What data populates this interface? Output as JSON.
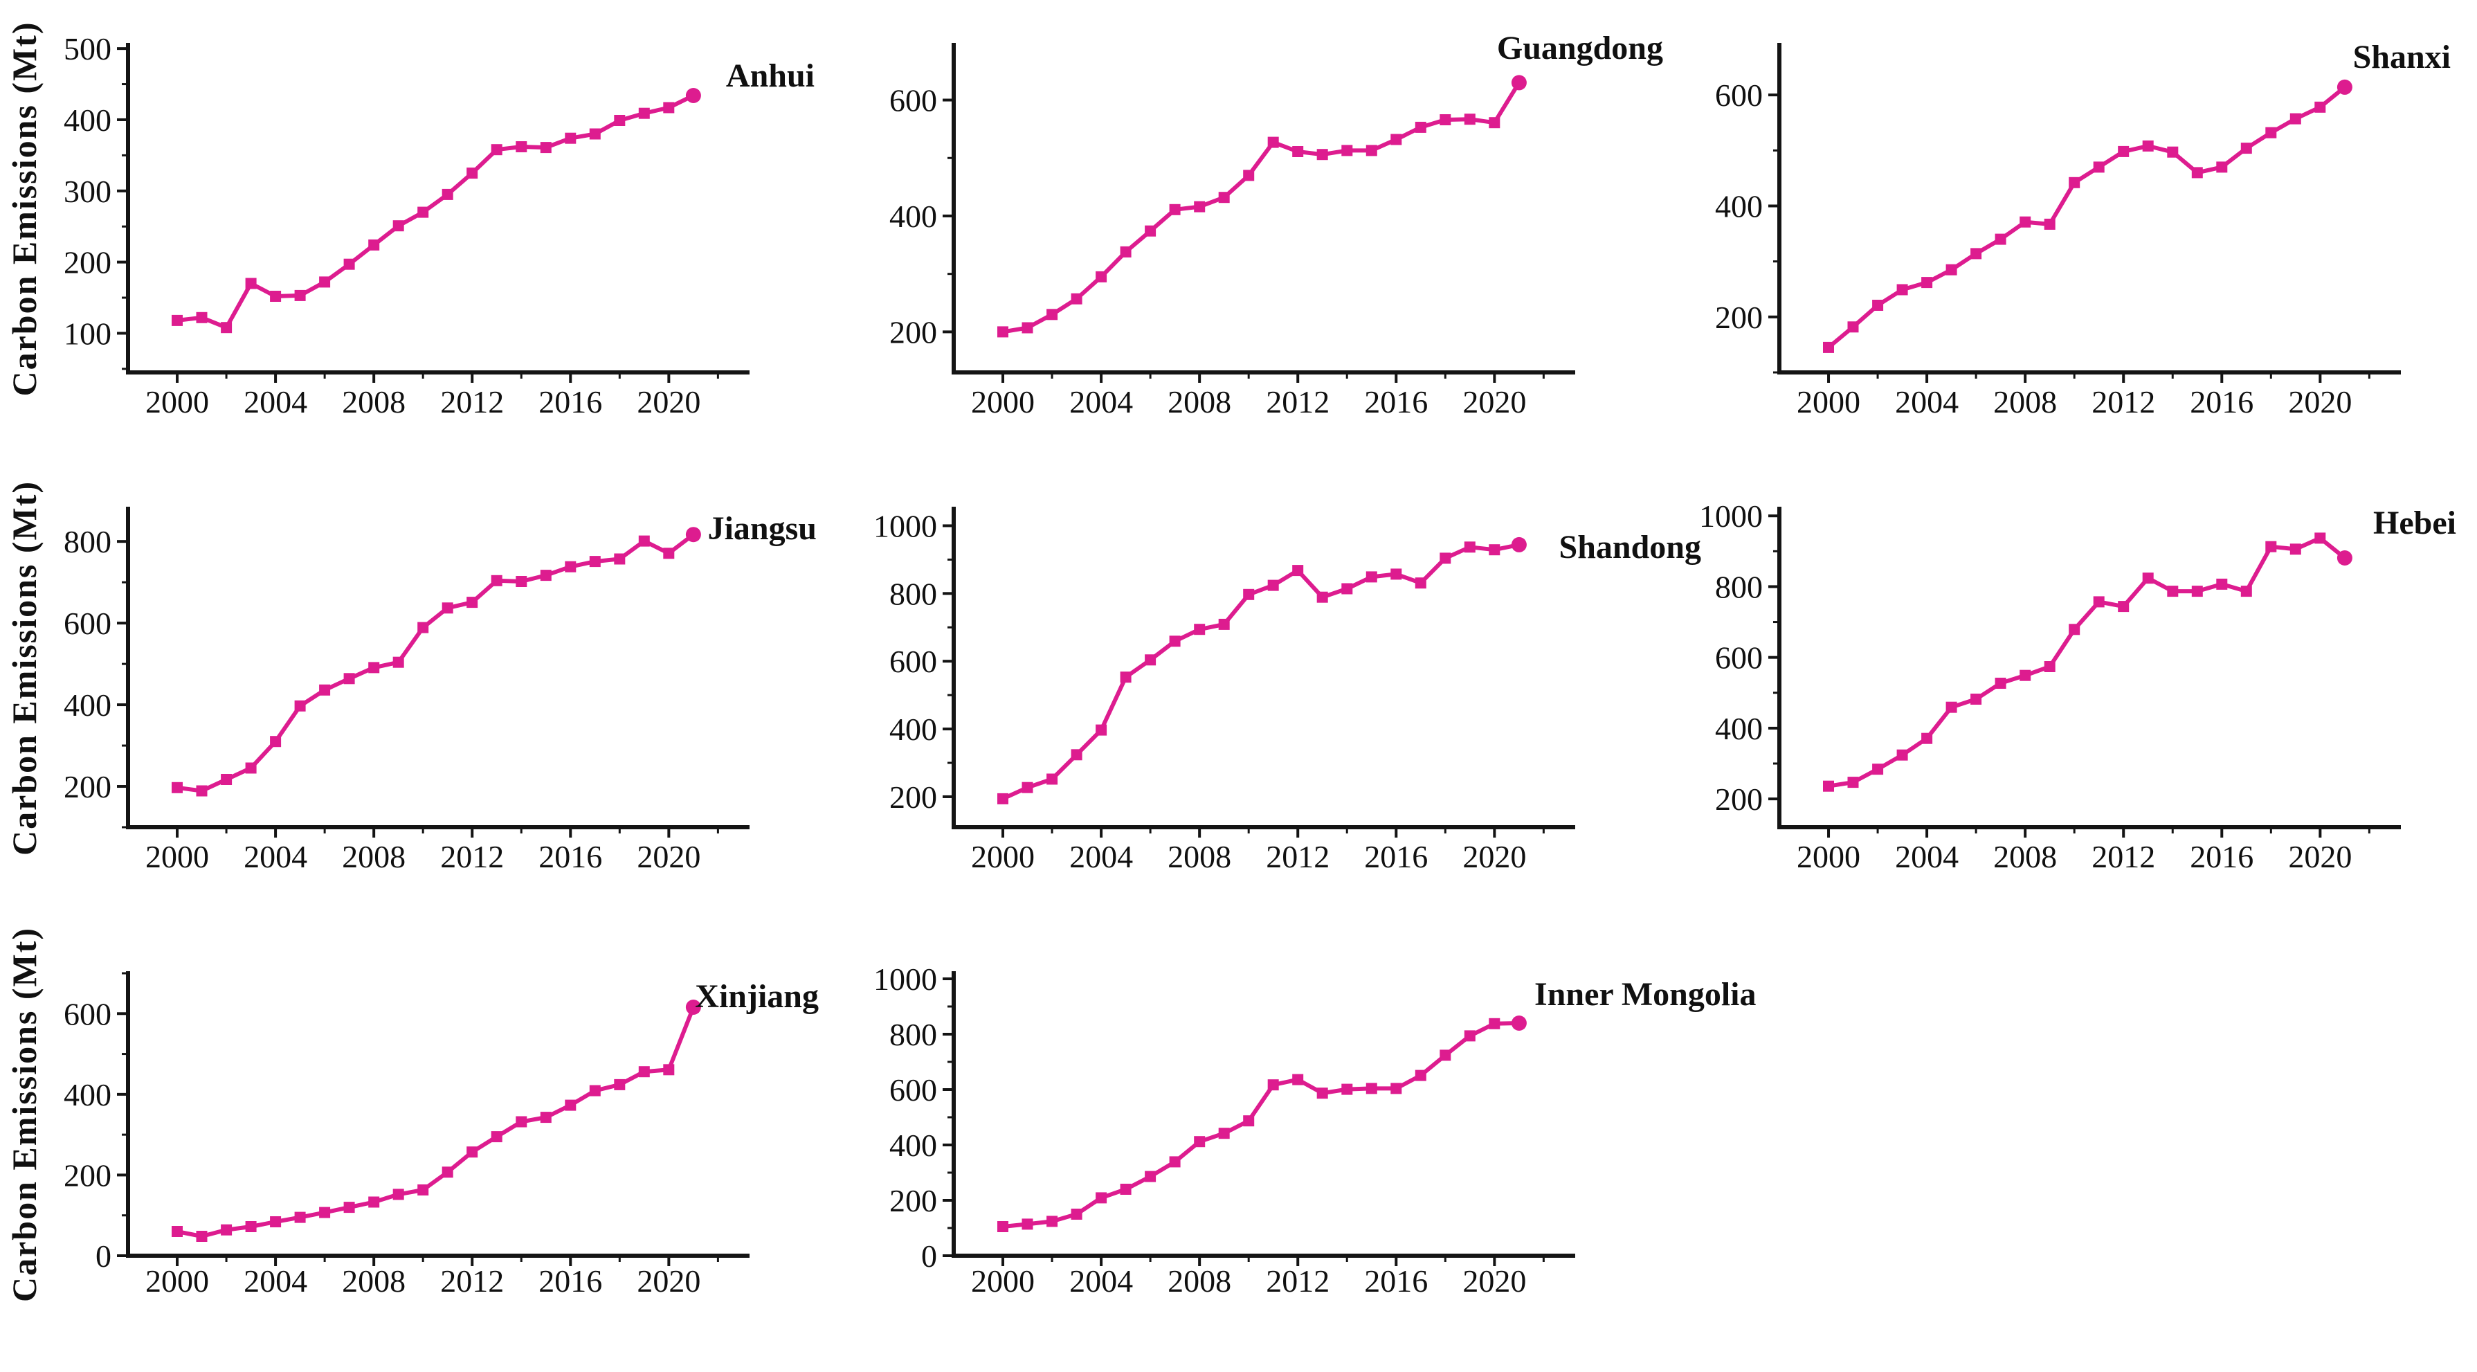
{
  "figure": {
    "y_axis_title": "Carbon Emissions (Mt)",
    "line_color": "#DD1C8F",
    "axis_color": "#141414",
    "background": "#ffffff"
  },
  "chart_data": [
    {
      "type": "line",
      "title": "Anhui",
      "ylabel": "Carbon Emissions (Mt)",
      "x": [
        2000,
        2001,
        2002,
        2003,
        2004,
        2005,
        2006,
        2007,
        2008,
        2009,
        2010,
        2011,
        2012,
        2013,
        2014,
        2015,
        2016,
        2017,
        2018,
        2019,
        2020,
        2021
      ],
      "values": [
        118,
        122,
        108,
        170,
        152,
        153,
        172,
        197,
        224,
        251,
        270,
        295,
        325,
        358,
        362,
        361,
        374,
        380,
        399,
        409,
        417,
        434
      ],
      "xticks": [
        2000,
        2004,
        2008,
        2012,
        2016,
        2020
      ],
      "x_minor_interval": 2,
      "yticks": [
        100,
        200,
        300,
        400,
        500
      ],
      "y_minor_interval": 50,
      "xlim": [
        1998.0,
        2023.2
      ],
      "ylim": [
        45,
        505
      ],
      "grid": false,
      "legend": "none",
      "layout": {
        "row": 0,
        "col": 0,
        "title_x": 1177,
        "title_y": 125,
        "title_anchor": "end",
        "show_y_axis_title": true
      }
    },
    {
      "type": "line",
      "title": "Guangdong",
      "ylabel": "",
      "x": [
        2000,
        2001,
        2002,
        2003,
        2004,
        2005,
        2006,
        2007,
        2008,
        2009,
        2010,
        2011,
        2012,
        2013,
        2014,
        2015,
        2016,
        2017,
        2018,
        2019,
        2020,
        2021
      ],
      "values": [
        200,
        207,
        230,
        257,
        295,
        338,
        374,
        411,
        416,
        432,
        470,
        527,
        511,
        506,
        513,
        513,
        532,
        553,
        566,
        567,
        561,
        630
      ],
      "xticks": [
        2000,
        2004,
        2008,
        2012,
        2016,
        2020
      ],
      "x_minor_interval": 2,
      "yticks": [
        200,
        400,
        600
      ],
      "y_minor_interval": 100,
      "xlim": [
        1998.0,
        2023.2
      ],
      "ylim": [
        130,
        695
      ],
      "grid": false,
      "legend": "none",
      "layout": {
        "row": 0,
        "col": 1,
        "title_x": 1210,
        "title_y": 85,
        "title_anchor": "end",
        "show_y_axis_title": false
      }
    },
    {
      "type": "line",
      "title": "Shanxi",
      "ylabel": "",
      "x": [
        2000,
        2001,
        2002,
        2003,
        2004,
        2005,
        2006,
        2007,
        2008,
        2009,
        2010,
        2011,
        2012,
        2013,
        2014,
        2015,
        2016,
        2017,
        2018,
        2019,
        2020,
        2021
      ],
      "values": [
        145,
        182,
        221,
        249,
        262,
        285,
        314,
        340,
        371,
        367,
        442,
        470,
        498,
        508,
        497,
        460,
        470,
        504,
        532,
        557,
        578,
        614
      ],
      "xticks": [
        2000,
        2004,
        2008,
        2012,
        2016,
        2020
      ],
      "x_minor_interval": 2,
      "yticks": [
        200,
        400,
        600
      ],
      "y_minor_interval": 100,
      "xlim": [
        1998.0,
        2023.2
      ],
      "ylim": [
        100,
        690
      ],
      "grid": false,
      "legend": "none",
      "layout": {
        "row": 0,
        "col": 2,
        "title_x": 1155,
        "title_y": 98,
        "title_anchor": "end",
        "show_y_axis_title": false
      }
    },
    {
      "type": "line",
      "title": "Jiangsu",
      "ylabel": "Carbon Emissions (Mt)",
      "x": [
        2000,
        2001,
        2002,
        2003,
        2004,
        2005,
        2006,
        2007,
        2008,
        2009,
        2010,
        2011,
        2012,
        2013,
        2014,
        2015,
        2016,
        2017,
        2018,
        2019,
        2020,
        2021
      ],
      "values": [
        197,
        189,
        217,
        245,
        310,
        397,
        436,
        464,
        491,
        504,
        589,
        637,
        651,
        704,
        702,
        717,
        738,
        751,
        757,
        801,
        771,
        817
      ],
      "xticks": [
        2000,
        2004,
        2008,
        2012,
        2016,
        2020
      ],
      "x_minor_interval": 2,
      "yticks": [
        200,
        400,
        600,
        800
      ],
      "y_minor_interval": 100,
      "xlim": [
        1998.0,
        2023.2
      ],
      "ylim": [
        100,
        880
      ],
      "grid": false,
      "legend": "none",
      "layout": {
        "row": 1,
        "col": 0,
        "title_x": 1180,
        "title_y": 118,
        "title_anchor": "end",
        "show_y_axis_title": true
      }
    },
    {
      "type": "line",
      "title": "Shandong",
      "ylabel": "",
      "x": [
        2000,
        2001,
        2002,
        2003,
        2004,
        2005,
        2006,
        2007,
        2008,
        2009,
        2010,
        2011,
        2012,
        2013,
        2014,
        2015,
        2016,
        2017,
        2018,
        2019,
        2020,
        2021
      ],
      "values": [
        194,
        227,
        252,
        324,
        397,
        553,
        604,
        659,
        694,
        709,
        797,
        824,
        868,
        789,
        814,
        849,
        857,
        831,
        904,
        937,
        929,
        944
      ],
      "xticks": [
        2000,
        2004,
        2008,
        2012,
        2016,
        2020
      ],
      "x_minor_interval": 2,
      "yticks": [
        200,
        400,
        600,
        800,
        1000
      ],
      "y_minor_interval": 100,
      "xlim": [
        1998.0,
        2023.2
      ],
      "ylim": [
        110,
        1050
      ],
      "grid": false,
      "legend": "none",
      "layout": {
        "row": 1,
        "col": 1,
        "title_x": 1265,
        "title_y": 145,
        "title_anchor": "end",
        "show_y_axis_title": false
      }
    },
    {
      "type": "line",
      "title": "Hebei",
      "ylabel": "",
      "x": [
        2000,
        2001,
        2002,
        2003,
        2004,
        2005,
        2006,
        2007,
        2008,
        2009,
        2010,
        2011,
        2012,
        2013,
        2014,
        2015,
        2016,
        2017,
        2018,
        2019,
        2020,
        2021
      ],
      "values": [
        236,
        247,
        284,
        324,
        371,
        459,
        482,
        527,
        549,
        574,
        679,
        757,
        744,
        824,
        787,
        787,
        807,
        787,
        913,
        906,
        937,
        881
      ],
      "xticks": [
        2000,
        2004,
        2008,
        2012,
        2016,
        2020
      ],
      "x_minor_interval": 2,
      "yticks": [
        200,
        400,
        600,
        800,
        1000
      ],
      "y_minor_interval": 100,
      "xlim": [
        1998.0,
        2023.2
      ],
      "ylim": [
        120,
        1020
      ],
      "grid": false,
      "legend": "none",
      "layout": {
        "row": 1,
        "col": 2,
        "title_x": 1163,
        "title_y": 110,
        "title_anchor": "end",
        "show_y_axis_title": false
      }
    },
    {
      "type": "line",
      "title": "Xinjiang",
      "ylabel": "Carbon Emissions (Mt)",
      "x": [
        2000,
        2001,
        2002,
        2003,
        2004,
        2005,
        2006,
        2007,
        2008,
        2009,
        2010,
        2011,
        2012,
        2013,
        2014,
        2015,
        2016,
        2017,
        2018,
        2019,
        2020,
        2021
      ],
      "values": [
        60,
        48,
        64,
        72,
        84,
        95,
        107,
        120,
        133,
        152,
        163,
        207,
        257,
        295,
        332,
        343,
        373,
        409,
        424,
        456,
        461,
        616
      ],
      "xticks": [
        2000,
        2004,
        2008,
        2012,
        2016,
        2020
      ],
      "x_minor_interval": 2,
      "yticks": [
        0,
        200,
        400,
        600
      ],
      "y_minor_interval": 100,
      "xlim": [
        1998.0,
        2023.2
      ],
      "ylim": [
        0,
        700
      ],
      "grid": false,
      "legend": "none",
      "layout": {
        "row": 2,
        "col": 0,
        "title_x": 1183,
        "title_y": 133,
        "title_anchor": "end",
        "show_y_axis_title": true
      }
    },
    {
      "type": "line",
      "title": "Inner Mongolia",
      "ylabel": "",
      "x": [
        2000,
        2001,
        2002,
        2003,
        2004,
        2005,
        2006,
        2007,
        2008,
        2009,
        2010,
        2011,
        2012,
        2013,
        2014,
        2015,
        2016,
        2017,
        2018,
        2019,
        2020,
        2021
      ],
      "values": [
        105,
        114,
        124,
        150,
        209,
        240,
        286,
        339,
        412,
        442,
        487,
        617,
        636,
        587,
        601,
        604,
        604,
        651,
        724,
        794,
        838,
        840
      ],
      "xticks": [
        2000,
        2004,
        2008,
        2012,
        2016,
        2020
      ],
      "x_minor_interval": 2,
      "yticks": [
        0,
        200,
        400,
        600,
        800,
        1000
      ],
      "y_minor_interval": 100,
      "xlim": [
        1998.0,
        2023.2
      ],
      "ylim": [
        0,
        1020
      ],
      "grid": false,
      "legend": "none",
      "layout": {
        "row": 2,
        "col": 1,
        "title_x": 1024,
        "title_y": 130,
        "title_anchor": "start",
        "show_y_axis_title": false
      }
    }
  ]
}
